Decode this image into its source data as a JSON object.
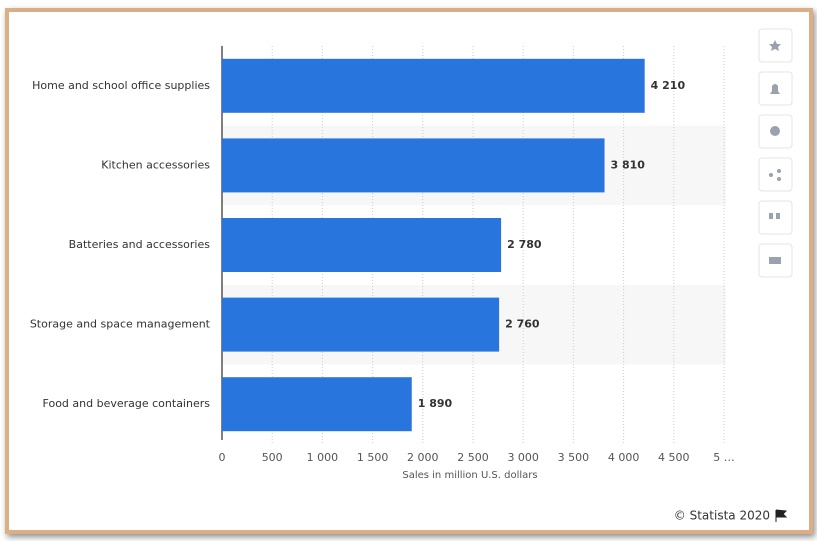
{
  "chart_data": {
    "type": "hbar",
    "categories": [
      "Home and school office supplies",
      "Kitchen accessories",
      "Batteries and accessories",
      "Storage and space management",
      "Food and beverage containers"
    ],
    "values": [
      4210,
      3810,
      2780,
      2760,
      1890
    ],
    "value_labels": [
      "4 210",
      "3 810",
      "2 780",
      "2 760",
      "1 890"
    ],
    "color": "#2876dd",
    "xlabel": "Sales in million U.S. dollars",
    "xlim": [
      0,
      5000
    ],
    "xticks": [
      0,
      500,
      {
        "value": 1000,
        "label": "1 000"
      },
      {
        "value": 1500,
        "label": "1 500"
      },
      {
        "value": 2000,
        "label": "2 000"
      },
      {
        "value": 2500,
        "label": "2 500"
      },
      {
        "value": 3000,
        "label": "3 000"
      },
      {
        "value": 3500,
        "label": "3 500"
      },
      {
        "value": 4000,
        "label": "4 000"
      },
      {
        "value": 4500,
        "label": "4 500"
      },
      {
        "value": 5000,
        "label": "5 …"
      }
    ],
    "grid": true,
    "source": "© Statista 2020"
  }
}
